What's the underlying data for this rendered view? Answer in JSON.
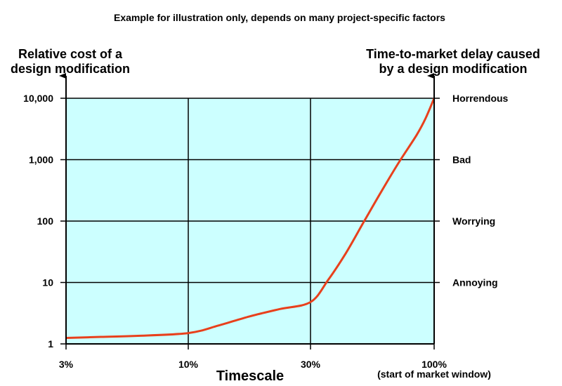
{
  "chart_data": {
    "type": "line",
    "title": "Example for illustration only, depends on many project-specific factors",
    "xlabel": "Timescale",
    "ylabel_left": "Relative cost of a design modification",
    "ylabel_left_lines": [
      "Relative cost of a",
      "design modification"
    ],
    "ylabel_right": "Time-to-market delay caused by a design modification",
    "ylabel_right_lines": [
      "Time-to-market delay caused",
      "by a design modification"
    ],
    "x_ticks": [
      {
        "value": 3,
        "label": "3%"
      },
      {
        "value": 10,
        "label": "10%"
      },
      {
        "value": 30,
        "label": "30%"
      },
      {
        "value": 100,
        "label": "100%"
      }
    ],
    "x_tick_sublabel": "(start of market window)",
    "y_scale": "log",
    "ylim": [
      1,
      10000
    ],
    "y_ticks": [
      {
        "value": 1,
        "label": "1"
      },
      {
        "value": 10,
        "label": "10"
      },
      {
        "value": 100,
        "label": "100"
      },
      {
        "value": 1000,
        "label": "1,000"
      },
      {
        "value": 10000,
        "label": "10,000"
      }
    ],
    "right_ticks": [
      {
        "value": 10,
        "label": "Annoying"
      },
      {
        "value": 100,
        "label": "Worrying"
      },
      {
        "value": 1000,
        "label": "Bad"
      },
      {
        "value": 10000,
        "label": "Horrendous"
      }
    ],
    "grid": true,
    "colors": {
      "plot_bg": "#ccffff",
      "curve": "#e8401c",
      "axis": "#000000"
    },
    "series": [
      {
        "x": [
          3,
          5,
          7,
          10,
          15,
          20,
          25,
          30,
          40,
          50,
          60,
          70,
          80,
          90,
          95,
          100
        ],
        "y": [
          1.25,
          1.3,
          1.35,
          1.5,
          2.0,
          2.8,
          3.7,
          4.8,
          11,
          30,
          95,
          300,
          900,
          2500,
          4600,
          10000
        ]
      }
    ]
  }
}
